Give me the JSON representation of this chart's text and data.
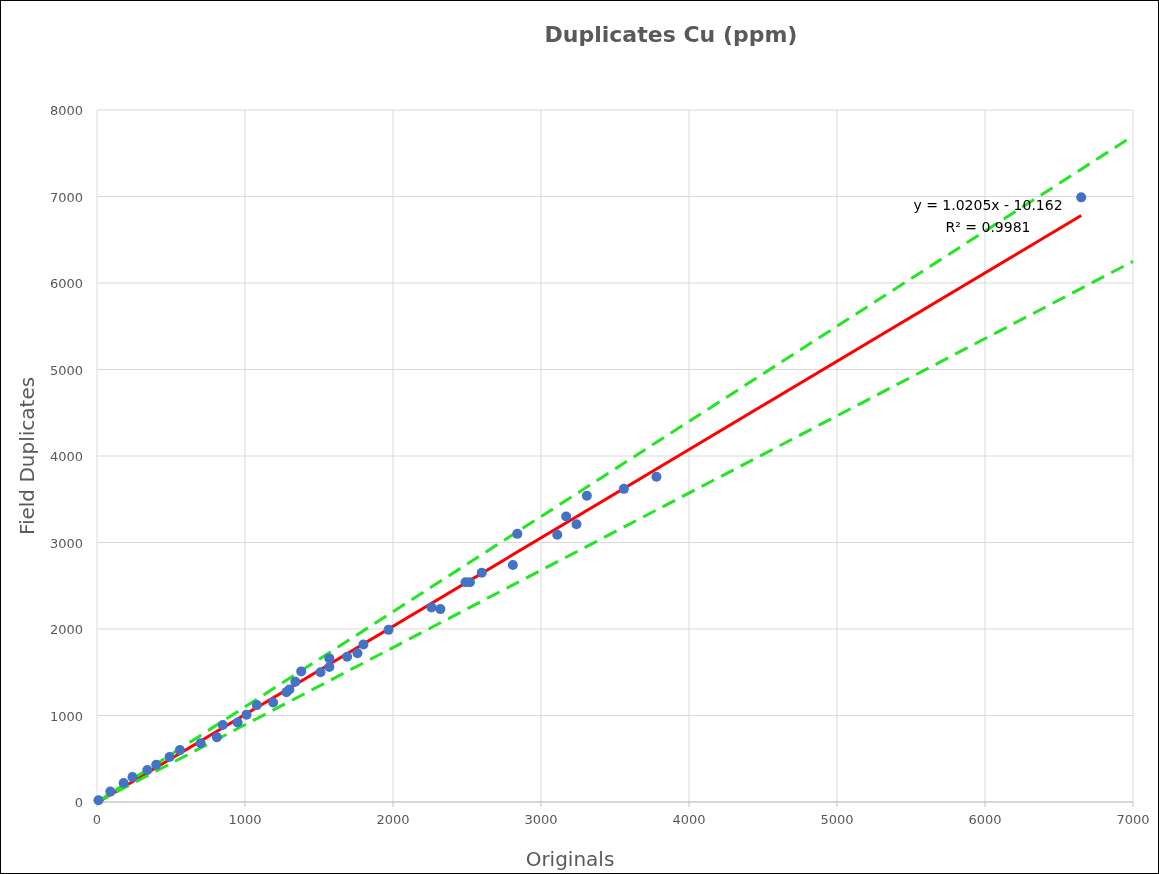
{
  "chart_data": {
    "type": "scatter",
    "title": "Duplicates Cu (ppm)",
    "xlabel": "Originals",
    "ylabel": "Field Duplicates",
    "xlim": [
      0,
      7000
    ],
    "xticks": [
      0,
      1000,
      2000,
      3000,
      4000,
      5000,
      6000,
      7000
    ],
    "ylim": [
      0,
      8000
    ],
    "yticks": [
      0,
      1000,
      2000,
      3000,
      4000,
      5000,
      6000,
      7000,
      8000
    ],
    "grid": true,
    "series": [
      {
        "color": "#4472c4",
        "marker": "circle",
        "x": [
          10,
          90,
          180,
          240,
          340,
          400,
          490,
          560,
          700,
          810,
          850,
          950,
          1010,
          1080,
          1190,
          1280,
          1300,
          1340,
          1380,
          1510,
          1570,
          1570,
          1690,
          1760,
          1800,
          1970,
          2260,
          2320,
          2490,
          2520,
          2600,
          2810,
          2840,
          3110,
          3170,
          3240,
          3310,
          3560,
          3780,
          6650
        ],
        "values": [
          20,
          120,
          220,
          290,
          370,
          430,
          520,
          600,
          680,
          750,
          890,
          920,
          1010,
          1120,
          1150,
          1270,
          1300,
          1390,
          1510,
          1500,
          1560,
          1660,
          1680,
          1720,
          1820,
          1990,
          2250,
          2230,
          2540,
          2540,
          2650,
          2740,
          3100,
          3090,
          3300,
          3210,
          3540,
          3620,
          3760,
          6990
        ]
      },
      {
        "type": "line",
        "color": "#ff0000",
        "line_style": "solid",
        "x": [
          10,
          6650
        ],
        "values": [
          0,
          6780
        ]
      },
      {
        "type": "line",
        "color": "#22e622",
        "line_style": "dashed",
        "x": [
          0,
          7000
        ],
        "values": [
          0,
          7700
        ]
      },
      {
        "type": "line",
        "color": "#22e622",
        "line_style": "dashed",
        "x": [
          0,
          7000
        ],
        "values": [
          0,
          6250
        ]
      }
    ],
    "annotations": [
      "y = 1.0205x - 10.162",
      "R² = 0.9981"
    ]
  }
}
